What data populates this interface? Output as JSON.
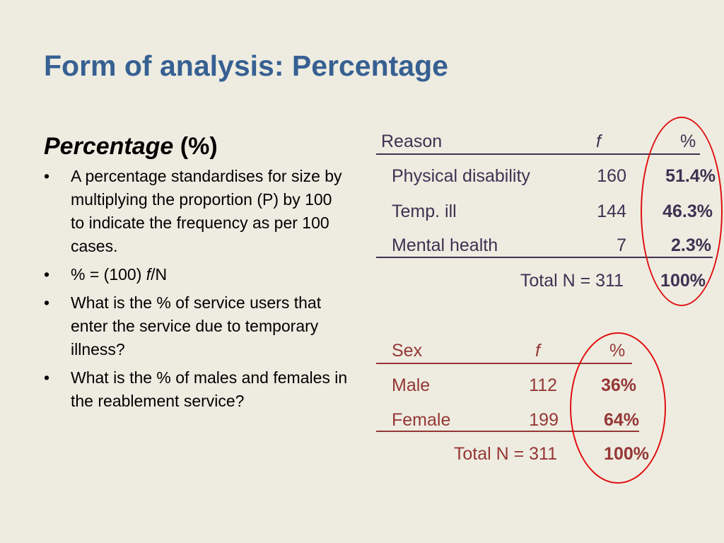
{
  "title": "Form of analysis: Percentage",
  "subtitle": {
    "italic": "Percentage",
    "rest": " (%)"
  },
  "bullets": {
    "b1": "A percentage standardises for size by multiplying the proportion (P) by 100 to indicate the frequency as per 100 cases.",
    "b2_prefix": "% = (100) ",
    "b2_f": "f",
    "b2_suffix": "/N",
    "b3": "What is the % of service users that enter the service due to temporary illness?",
    "b4": "What is the % of males and females in the reablement service?"
  },
  "reason_table": {
    "headers": {
      "label": "Reason",
      "f": "f",
      "pct": "%"
    },
    "rows": [
      {
        "label": "Physical disability",
        "f": "160",
        "pct": "51.4%"
      },
      {
        "label": "Temp. ill",
        "f": "144",
        "pct": "46.3%"
      },
      {
        "label": "Mental health",
        "f": "7",
        "pct": "2.3%"
      }
    ],
    "total_label": "Total N = 311",
    "total_pct": "100%",
    "color": "#403152"
  },
  "sex_table": {
    "headers": {
      "label": "Sex",
      "f": "f",
      "pct": "%"
    },
    "rows": [
      {
        "label": "Male",
        "f": "112",
        "pct": "36%"
      },
      {
        "label": "Female",
        "f": "199",
        "pct": "64%"
      }
    ],
    "total_label": "Total N = 311",
    "total_pct": "100%",
    "color": "#953735"
  },
  "highlight_color": "#e01010"
}
